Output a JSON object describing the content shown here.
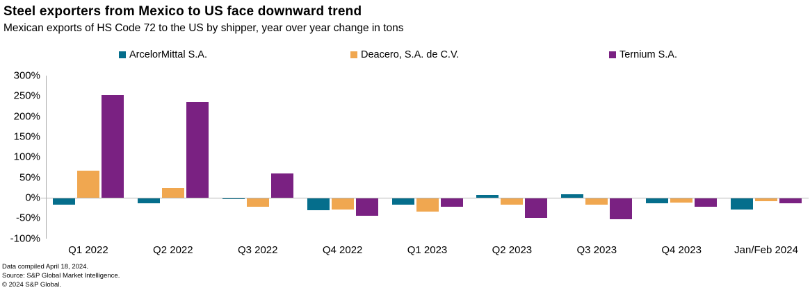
{
  "header": {
    "title": "Steel exporters from Mexico to US face downward trend",
    "subtitle": "Mexican exports of HS Code 72 to the US by shipper, year over year change in tons"
  },
  "chart_data": {
    "type": "bar",
    "categories": [
      "Q1 2022",
      "Q2 2022",
      "Q3 2022",
      "Q4 2022",
      "Q1 2023",
      "Q2 2023",
      "Q3 2023",
      "Q4 2023",
      "Jan/Feb 2024"
    ],
    "series": [
      {
        "name": "ArcelorMittal S.A.",
        "color": "#056e8c",
        "values": [
          -15,
          -12,
          -2,
          -30,
          -15,
          7,
          8,
          -12,
          -27
        ]
      },
      {
        "name": "Deacero, S.A. de C.V.",
        "color": "#f0a750",
        "values": [
          66,
          23,
          -21,
          -27,
          -32,
          -16,
          -15,
          -11,
          -7
        ]
      },
      {
        "name": "Ternium S.A.",
        "color": "#7a2182",
        "values": [
          252,
          236,
          60,
          -43,
          -21,
          -48,
          -51,
          -21,
          -12
        ]
      }
    ],
    "title": "Steel exporters from Mexico to US face downward trend",
    "xlabel": "",
    "ylabel": "",
    "ylim": [
      -100,
      300
    ],
    "ytick_step": 50,
    "ytick_suffix": "%",
    "grid": "zero-line-only",
    "legend_position": "top"
  },
  "footer": {
    "lines": [
      "Data compiled April 18, 2024.",
      "Source: S&P Global Market Intelligence.",
      "© 2024 S&P Global."
    ]
  }
}
